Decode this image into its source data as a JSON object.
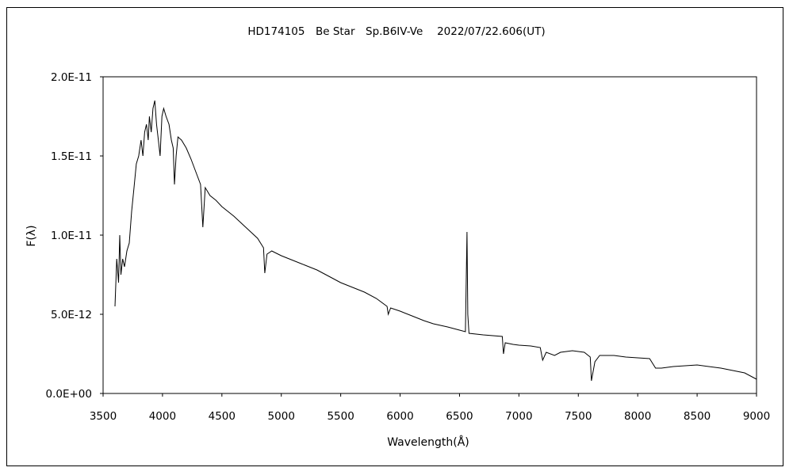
{
  "chart_data": {
    "type": "line",
    "title": "HD174105　Be Star　Sp.B6IV-Ve　 2022/07/22.606(UT)",
    "xlabel": "Wavelength(Å)",
    "ylabel": "F(λ)",
    "xlim": [
      3500,
      9000
    ],
    "ylim": [
      0,
      2e-11
    ],
    "x_ticks": [
      "3500",
      "4000",
      "4500",
      "5000",
      "5500",
      "6000",
      "6500",
      "7000",
      "7500",
      "8000",
      "8500",
      "9000"
    ],
    "y_ticks": [
      "0.0E+00",
      "5.0E-12",
      "1.0E-11",
      "1.5E-11",
      "2.0E-11"
    ],
    "x_tick_values": [
      3500,
      4000,
      4500,
      5000,
      5500,
      6000,
      6500,
      7000,
      7500,
      8000,
      8500,
      9000
    ],
    "y_tick_values": [
      0,
      5e-12,
      1e-11,
      1.5e-11,
      2e-11
    ],
    "grid": false,
    "legend": "none",
    "series": [
      {
        "color": "#000000",
        "points": [
          [
            3600,
            5.5e-12
          ],
          [
            3615,
            8.5e-12
          ],
          [
            3630,
            7e-12
          ],
          [
            3640,
            1e-11
          ],
          [
            3650,
            7.5e-12
          ],
          [
            3665,
            8.5e-12
          ],
          [
            3680,
            8e-12
          ],
          [
            3700,
            9e-12
          ],
          [
            3720,
            9.5e-12
          ],
          [
            3740,
            1.15e-11
          ],
          [
            3760,
            1.3e-11
          ],
          [
            3780,
            1.45e-11
          ],
          [
            3800,
            1.5e-11
          ],
          [
            3820,
            1.6e-11
          ],
          [
            3835,
            1.5e-11
          ],
          [
            3850,
            1.65e-11
          ],
          [
            3865,
            1.7e-11
          ],
          [
            3880,
            1.6e-11
          ],
          [
            3890,
            1.75e-11
          ],
          [
            3905,
            1.65e-11
          ],
          [
            3920,
            1.8e-11
          ],
          [
            3935,
            1.85e-11
          ],
          [
            3950,
            1.7e-11
          ],
          [
            3965,
            1.6e-11
          ],
          [
            3980,
            1.5e-11
          ],
          [
            3995,
            1.75e-11
          ],
          [
            4010,
            1.8e-11
          ],
          [
            4030,
            1.75e-11
          ],
          [
            4055,
            1.7e-11
          ],
          [
            4075,
            1.6e-11
          ],
          [
            4090,
            1.55e-11
          ],
          [
            4101,
            1.32e-11
          ],
          [
            4115,
            1.5e-11
          ],
          [
            4130,
            1.62e-11
          ],
          [
            4160,
            1.6e-11
          ],
          [
            4200,
            1.55e-11
          ],
          [
            4240,
            1.48e-11
          ],
          [
            4280,
            1.4e-11
          ],
          [
            4320,
            1.32e-11
          ],
          [
            4340,
            1.05e-11
          ],
          [
            4360,
            1.3e-11
          ],
          [
            4400,
            1.25e-11
          ],
          [
            4450,
            1.22e-11
          ],
          [
            4500,
            1.18e-11
          ],
          [
            4600,
            1.12e-11
          ],
          [
            4700,
            1.05e-11
          ],
          [
            4800,
            9.8e-12
          ],
          [
            4850,
            9.2e-12
          ],
          [
            4861,
            7.6e-12
          ],
          [
            4880,
            8.8e-12
          ],
          [
            4920,
            9e-12
          ],
          [
            5000,
            8.7e-12
          ],
          [
            5100,
            8.4e-12
          ],
          [
            5200,
            8.1e-12
          ],
          [
            5300,
            7.8e-12
          ],
          [
            5400,
            7.4e-12
          ],
          [
            5500,
            7e-12
          ],
          [
            5600,
            6.7e-12
          ],
          [
            5700,
            6.4e-12
          ],
          [
            5800,
            6e-12
          ],
          [
            5890,
            5.5e-12
          ],
          [
            5900,
            5e-12
          ],
          [
            5920,
            5.4e-12
          ],
          [
            6000,
            5.2e-12
          ],
          [
            6100,
            4.9e-12
          ],
          [
            6200,
            4.6e-12
          ],
          [
            6280,
            4.4e-12
          ],
          [
            6400,
            4.2e-12
          ],
          [
            6500,
            4e-12
          ],
          [
            6550,
            3.9e-12
          ],
          [
            6563,
            1.02e-11
          ],
          [
            6570,
            5e-12
          ],
          [
            6580,
            3.8e-12
          ],
          [
            6700,
            3.7e-12
          ],
          [
            6860,
            3.6e-12
          ],
          [
            6870,
            2.5e-12
          ],
          [
            6885,
            3.2e-12
          ],
          [
            6950,
            3.1e-12
          ],
          [
            7000,
            3.05e-12
          ],
          [
            7100,
            3e-12
          ],
          [
            7180,
            2.9e-12
          ],
          [
            7200,
            2.1e-12
          ],
          [
            7230,
            2.6e-12
          ],
          [
            7300,
            2.4e-12
          ],
          [
            7350,
            2.6e-12
          ],
          [
            7450,
            2.7e-12
          ],
          [
            7550,
            2.6e-12
          ],
          [
            7600,
            2.3e-12
          ],
          [
            7610,
            8e-13
          ],
          [
            7640,
            2e-12
          ],
          [
            7680,
            2.4e-12
          ],
          [
            7800,
            2.4e-12
          ],
          [
            7900,
            2.3e-12
          ],
          [
            8000,
            2.25e-12
          ],
          [
            8100,
            2.2e-12
          ],
          [
            8150,
            1.6e-12
          ],
          [
            8200,
            1.6e-12
          ],
          [
            8300,
            1.7e-12
          ],
          [
            8500,
            1.8e-12
          ],
          [
            8700,
            1.6e-12
          ],
          [
            8900,
            1.3e-12
          ],
          [
            9000,
            9e-13
          ]
        ]
      }
    ]
  }
}
